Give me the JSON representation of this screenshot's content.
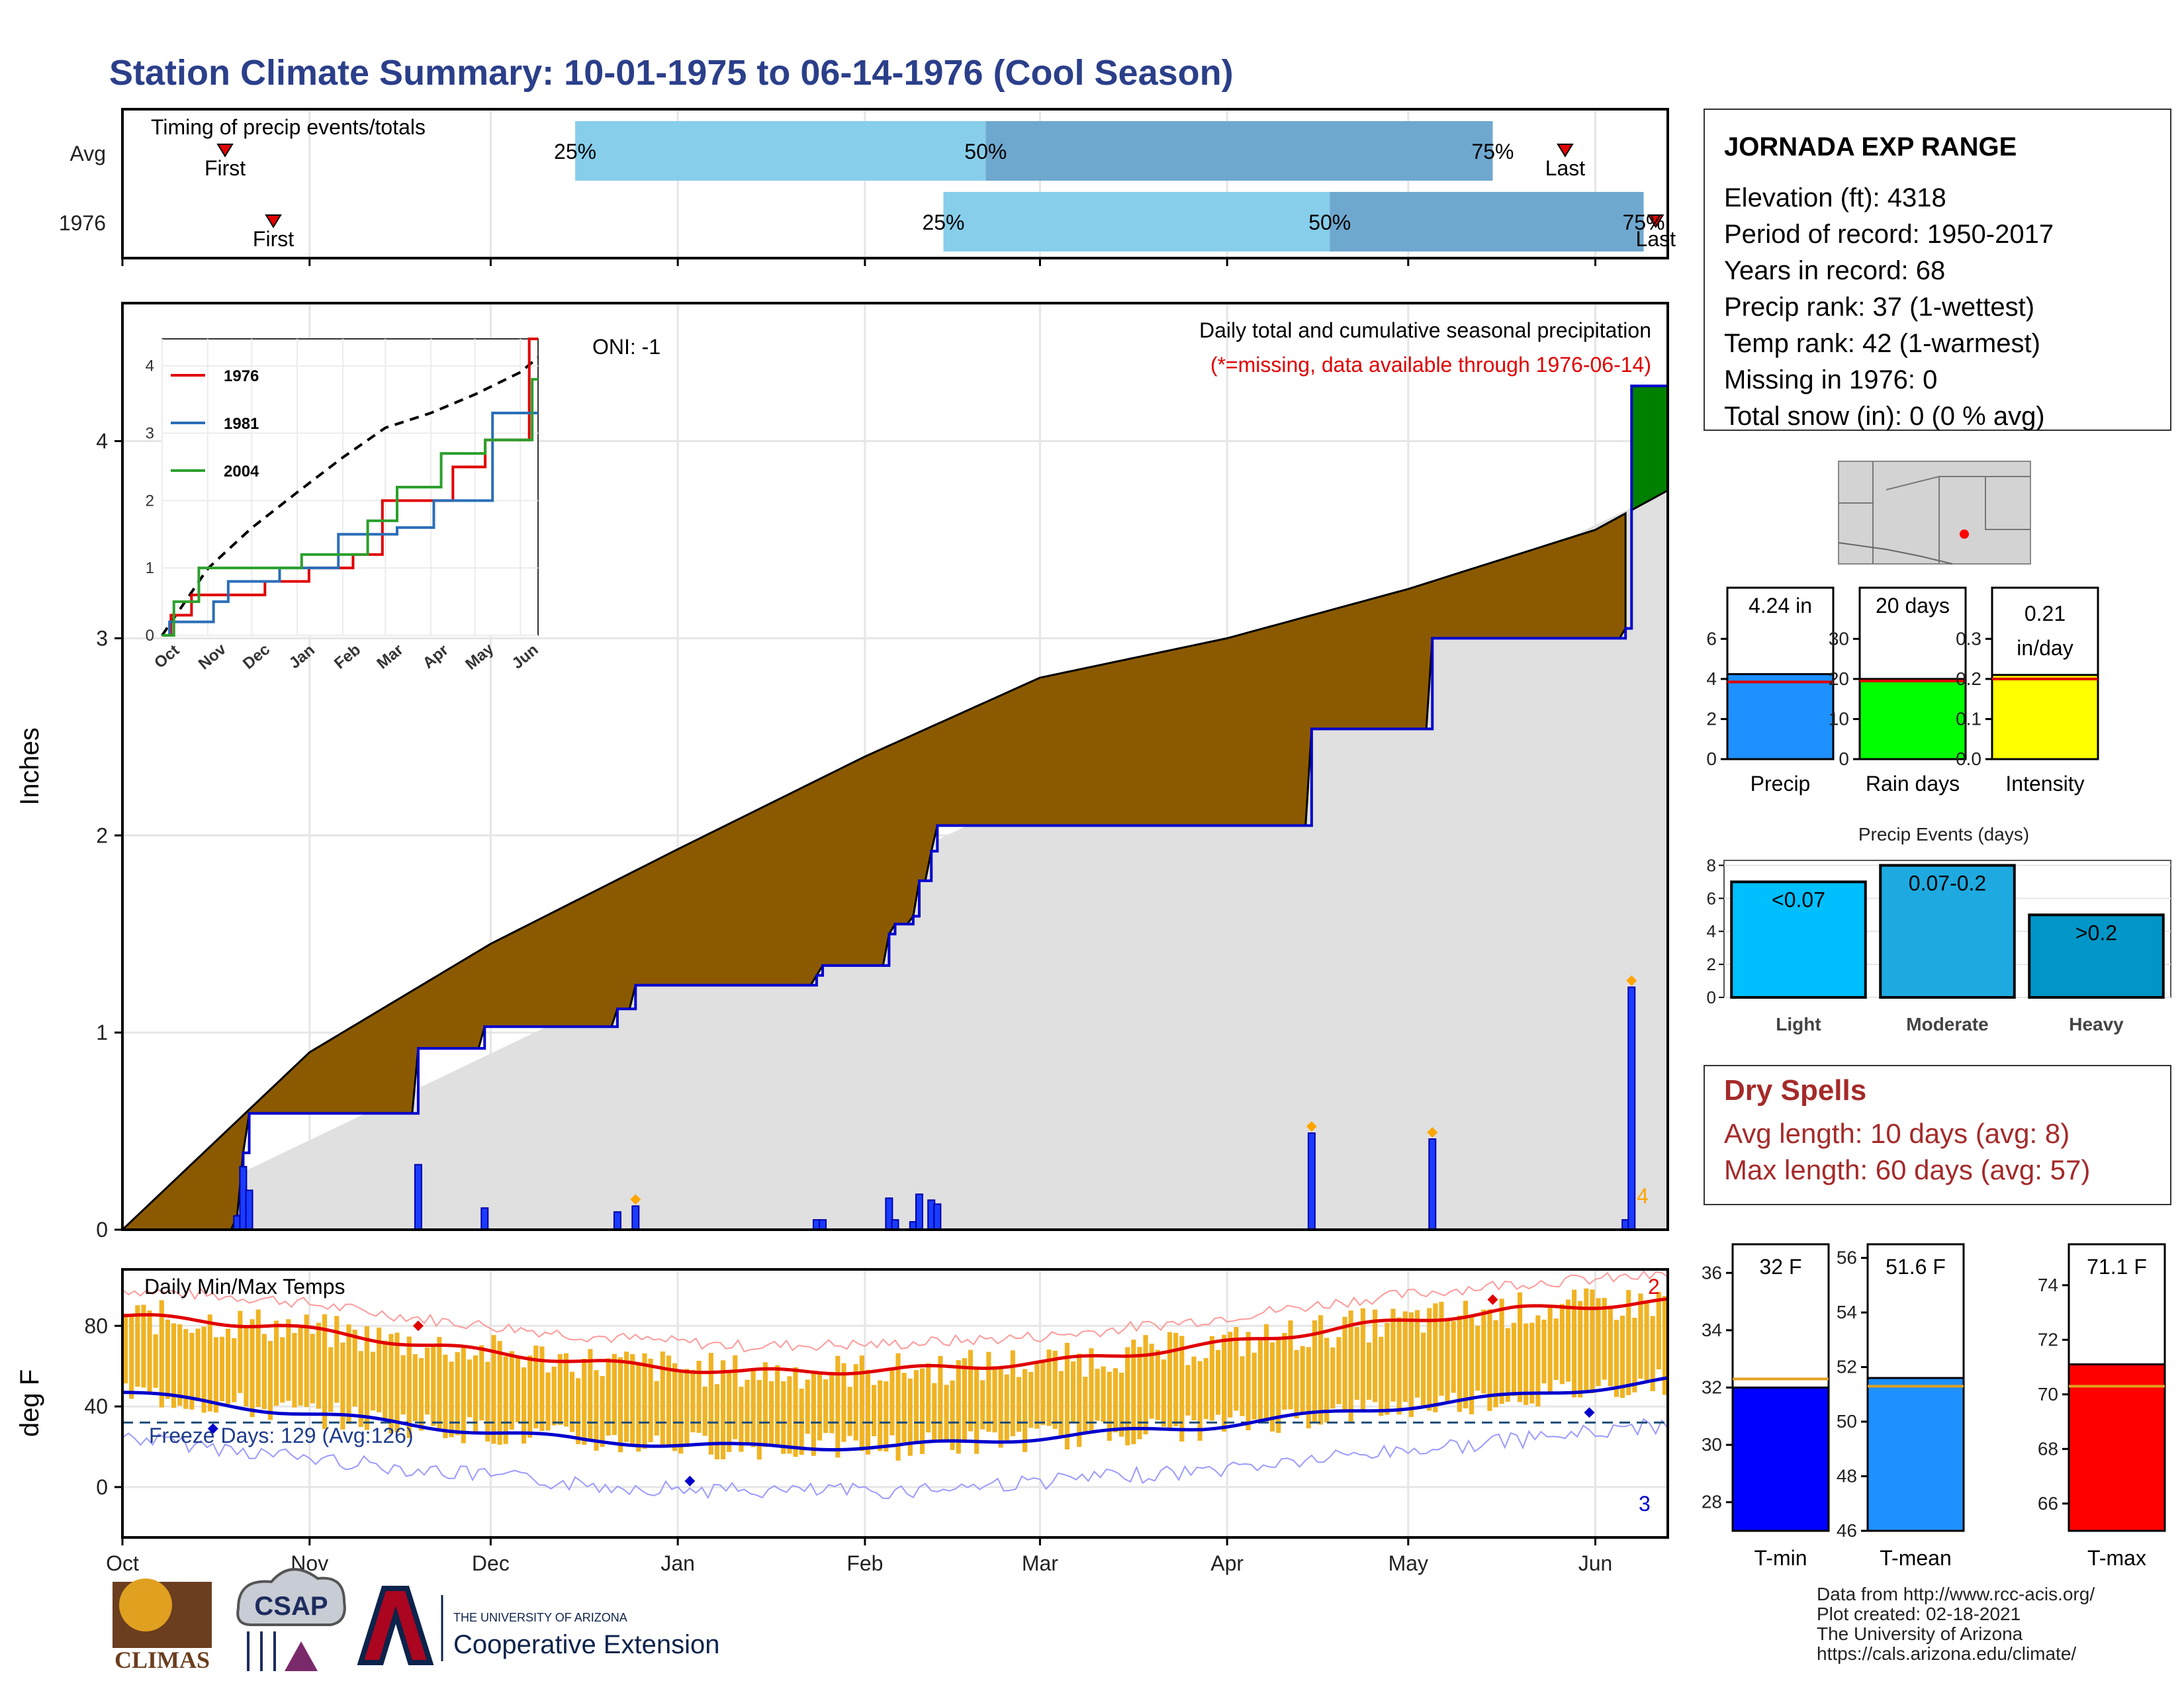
{
  "title": "Station Climate Summary: 10-01-1975 to 06-14-1976 (Cool Season)",
  "colors": {
    "title": "#2b3f8a",
    "timing_light": "#87ceeb",
    "timing_dark": "#6fa8cf",
    "brown": "#8b5a00",
    "green": "#008000",
    "gray_fill": "#e0e0e0",
    "blue_line": "#0000cd",
    "bar_blue": "#1a3cff",
    "orange": "#ffa500",
    "temp_bar": "#f0b323",
    "red": "#e00000",
    "navy": "#0000cd"
  },
  "months": [
    "Oct",
    "Nov",
    "Dec",
    "Jan",
    "Feb",
    "Mar",
    "Apr",
    "May",
    "Jun"
  ],
  "timing": {
    "title": "Timing of precip events/totals",
    "rows": [
      {
        "label": "Avg",
        "first_day": 17,
        "p25_day": 75,
        "p50_day": 143,
        "p75_day": 227,
        "last_day": 318,
        "first": "First",
        "last": "Last",
        "p25": "25%",
        "p50": "50%",
        "p75": "75%"
      },
      {
        "label": "1976",
        "first_day": 25,
        "p25_day": 136,
        "p50_day": 258,
        "p75_day": 256,
        "last_day": 258,
        "first": "First",
        "last": "Last",
        "p25": "25%",
        "p50": "50%",
        "p75": "75%"
      }
    ]
  },
  "precip_panel": {
    "ylabel": "Inches",
    "title": "Daily total and cumulative seasonal precipitation",
    "note": "(*=missing, data available through 1976-06-14)",
    "oni": "ONI: -1",
    "corner_count": "4",
    "yticks": [
      "0",
      "1",
      "2",
      "3",
      "4"
    ]
  },
  "inset": {
    "legend": [
      "1976",
      "1981",
      "2004"
    ],
    "legend_colors": [
      "#e00000",
      "#2a6fb8",
      "#2ca02c"
    ],
    "yticks": [
      "0",
      "1",
      "2",
      "3",
      "4"
    ],
    "months": [
      "Oct",
      "Nov",
      "Dec",
      "Jan",
      "Feb",
      "Mar",
      "Apr",
      "May",
      "Jun"
    ]
  },
  "temp_panel": {
    "ylabel": "deg F",
    "title": "Daily Min/Max Temps",
    "freeze": "Freeze Days: 129 (Avg:126)",
    "yticks": [
      "0",
      "40",
      "80"
    ],
    "max_count": "2",
    "min_count": "3"
  },
  "info": {
    "station": "JORNADA EXP RANGE",
    "lines": [
      "Elevation (ft): 4318",
      "Period of record: 1950-2017",
      "Years in record: 68",
      "Precip rank: 37 (1-wettest)",
      "Temp rank: 42 (1-warmest)",
      "Missing in 1976: 0",
      "Total snow (in): 0 (0 % avg)"
    ]
  },
  "mini_bars": [
    {
      "value": 4.24,
      "avg": 3.85,
      "max": 7,
      "ticks": [
        "0",
        "2",
        "4",
        "6"
      ],
      "box": "4.24 in",
      "box2": "",
      "label": "Precip",
      "color": "#1e90ff"
    },
    {
      "value": 20,
      "avg": 19.5,
      "max": 35,
      "ticks": [
        "0",
        "10",
        "20",
        "30"
      ],
      "box": "20 days",
      "box2": "",
      "label": "Rain days",
      "color": "#00ff00"
    },
    {
      "value": 0.21,
      "avg": 0.2,
      "max": 0.35,
      "ticks": [
        "0.0",
        "0.1",
        "0.2",
        "0.3"
      ],
      "box": "0.21",
      "box2": "in/day",
      "label": "Intensity",
      "color": "#ffff00"
    }
  ],
  "events": {
    "title": "Precip Events (days)",
    "yticks": [
      "0",
      "2",
      "4",
      "6",
      "8"
    ],
    "bars": [
      {
        "cat": "Light",
        "value": 7,
        "label": "<0.07",
        "color": "#00bfff"
      },
      {
        "cat": "Moderate",
        "value": 8,
        "label": "0.07-0.2",
        "color": "#1eaae0"
      },
      {
        "cat": "Heavy",
        "value": 5,
        "label": ">0.2",
        "color": "#0096c8"
      }
    ]
  },
  "dry": {
    "title": "Dry Spells",
    "avg": "Avg length: 10 days (avg: 8)",
    "max": "Max length: 60 days (avg: 57)"
  },
  "temp_bars": [
    {
      "value": 32,
      "avg": 32.3,
      "ymin": 27,
      "ymax": 37,
      "ticks": [
        "28",
        "30",
        "32",
        "34",
        "36"
      ],
      "box": "32 F",
      "label": "T-min",
      "color": "#0000ff"
    },
    {
      "value": 51.6,
      "avg": 51.3,
      "ymin": 46,
      "ymax": 56.5,
      "ticks": [
        "46",
        "48",
        "50",
        "52",
        "54",
        "56"
      ],
      "box": "51.6 F",
      "label": "T-mean",
      "color": "#1e90ff"
    },
    {
      "value": 71.1,
      "avg": 70.3,
      "ymin": 65,
      "ymax": 75.5,
      "ticks": [
        "66",
        "68",
        "70",
        "72",
        "74"
      ],
      "box": "71.1 F",
      "label": "T-max",
      "color": "#ff0000"
    }
  ],
  "footer": [
    "Data from http://www.rcc-acis.org/",
    "Plot created: 02-18-2021",
    "The University of Arizona",
    "https://cals.arizona.edu/climate/"
  ],
  "logos": {
    "climas": "CLIMAS",
    "csap": "CSAP",
    "ua_small": "THE UNIVERSITY OF ARIZONA",
    "ua_big": "Cooperative Extension"
  },
  "chart_data": {
    "type": "area",
    "title": "Daily total and cumulative seasonal precipitation",
    "ylabel": "Inches",
    "xlabel": "",
    "ylim": [
      0,
      4.7
    ],
    "x": [
      "Oct",
      "Nov",
      "Dec",
      "Jan",
      "Feb",
      "Mar",
      "Apr",
      "May",
      "Jun"
    ],
    "series": [
      {
        "name": "1976",
        "values_cumulative": [
          0,
          0.53,
          0.95,
          1.18,
          1.97,
          1.97,
          2.47,
          2.97,
          4.24
        ]
      }
    ],
    "average_cumulative": [
      0,
      0.9,
      1.45,
      1.93,
      2.4,
      2.8,
      3.0,
      3.25,
      3.55
    ],
    "daily_events": [
      {
        "day": 19,
        "in": 0.07
      },
      {
        "day": 20,
        "in": 0.32
      },
      {
        "day": 21,
        "in": 0.2
      },
      {
        "day": 49,
        "in": 0.33
      },
      {
        "day": 60,
        "in": 0.11
      },
      {
        "day": 82,
        "in": 0.09
      },
      {
        "day": 85,
        "in": 0.12
      },
      {
        "day": 115,
        "in": 0.05
      },
      {
        "day": 116,
        "in": 0.05
      },
      {
        "day": 127,
        "in": 0.16
      },
      {
        "day": 128,
        "in": 0.05
      },
      {
        "day": 131,
        "in": 0.04
      },
      {
        "day": 132,
        "in": 0.18
      },
      {
        "day": 134,
        "in": 0.15
      },
      {
        "day": 135,
        "in": 0.13
      },
      {
        "day": 197,
        "in": 0.49
      },
      {
        "day": 217,
        "in": 0.46
      },
      {
        "day": 249,
        "in": 0.05
      },
      {
        "day": 250,
        "in": 1.23
      }
    ],
    "temperature": {
      "title": "Daily Min/Max Temps",
      "ylabel": "deg F",
      "ylim": [
        -25,
        108
      ],
      "tmax_trend": [
        85,
        80,
        70,
        62,
        57,
        58,
        62,
        70,
        80,
        88,
        92
      ],
      "tmin_trend": [
        47,
        38,
        30,
        23,
        20,
        20,
        25,
        30,
        38,
        45,
        53
      ],
      "freeze_line": 32
    }
  }
}
